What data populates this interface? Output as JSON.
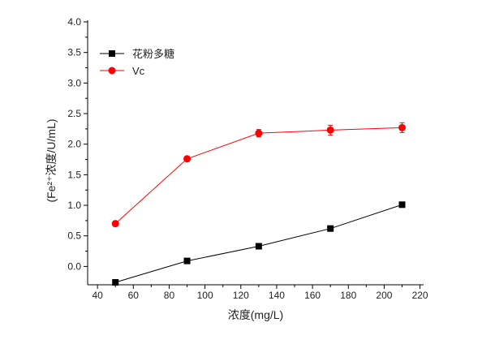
{
  "chart_data": {
    "type": "line",
    "title": "",
    "xlabel": "浓度(mg/L)",
    "ylabel": "(Fe²⁺浓度/U/mL)",
    "xlim": [
      34.5,
      222
    ],
    "ylim": [
      -0.3,
      4.0
    ],
    "xticks": [
      40,
      60,
      80,
      100,
      120,
      140,
      160,
      180,
      200,
      220
    ],
    "yticks": [
      "0.0",
      "0.5",
      "1.0",
      "1.5",
      "2.0",
      "2.5",
      "3.0",
      "3.5",
      "4.0"
    ],
    "grid": false,
    "legend_position": "top-left",
    "x": [
      50,
      90,
      130,
      170,
      210
    ],
    "series": [
      {
        "name": "花粉多糖",
        "color": "#000000",
        "marker": "square",
        "values": [
          -0.26,
          0.09,
          0.33,
          0.62,
          1.01
        ],
        "errors": [
          0,
          0,
          0,
          0,
          0
        ]
      },
      {
        "name": "Vc",
        "color": "#ff0000",
        "marker": "circle",
        "values": [
          0.7,
          1.76,
          2.18,
          2.23,
          2.27
        ],
        "errors": [
          0.04,
          0.04,
          0.06,
          0.08,
          0.08
        ]
      }
    ]
  }
}
